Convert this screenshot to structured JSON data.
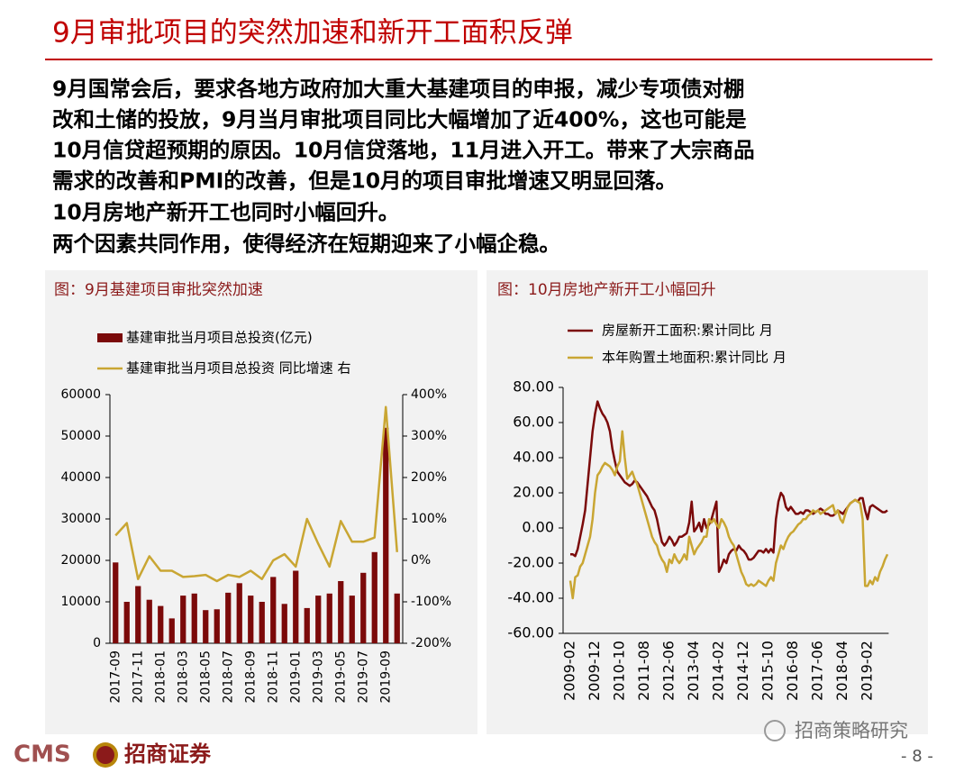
{
  "header": {
    "title": "9月审批项目的突然加速和新开工面积反弹"
  },
  "body": {
    "lines": [
      "9月国常会后，要求各地方政府加大重大基建项目的申报，减少专项债对棚",
      "改和土储的投放，9月当月审批项目同比大幅增加了近400%，这也可能是",
      "10月信贷超预期的原因。10月信贷落地，11月进入开工。带来了大宗商品",
      "需求的改善和PMI的改善，但是10月的项目审批增速又明显回落。",
      "10月房地产新开工也同时小幅回升。",
      "两个因素共同作用，使得经济在短期迎来了小幅企稳。"
    ]
  },
  "chart_data": [
    {
      "type": "bar",
      "title": "图：9月基建项目审批突然加速",
      "categories": [
        "2017-09",
        null,
        "2017-11",
        null,
        "2018-01",
        null,
        "2018-03",
        null,
        "2018-05",
        null,
        "2018-07",
        null,
        "2018-09",
        null,
        "2018-11",
        null,
        "2019-01",
        null,
        "2019-03",
        null,
        "2019-05",
        null,
        "2019-07",
        null,
        "2019-09",
        null
      ],
      "series": [
        {
          "name": "基建审批当月项目总投资(亿元)",
          "color": "#7b0a0a",
          "values": [
            19500,
            10000,
            13800,
            10500,
            9000,
            6000,
            11500,
            12000,
            8000,
            8200,
            12200,
            14500,
            11500,
            10000,
            16000,
            9500,
            17500,
            8500,
            11500,
            12000,
            15000,
            11500,
            17000,
            22000,
            52000,
            12000
          ]
        },
        {
          "name": "基建审批当月项目总投资  同比增速  右",
          "color": "#c9a633",
          "type": "line",
          "axis": "y2",
          "values": [
            60,
            90,
            -45,
            10,
            -25,
            -25,
            -40,
            -38,
            -35,
            -50,
            -35,
            -40,
            -25,
            -45,
            0,
            15,
            -15,
            100,
            40,
            -15,
            95,
            45,
            45,
            55,
            370,
            20
          ]
        }
      ],
      "ylim": [
        0,
        60000
      ],
      "yticks": [
        0,
        10000,
        20000,
        30000,
        40000,
        50000,
        60000
      ],
      "y2lim": [
        -200,
        400
      ],
      "y2ticks": [
        {
          "value": -200,
          "label": "-200%"
        },
        {
          "value": -100,
          "label": "-100%"
        },
        {
          "value": 0,
          "label": "0%"
        },
        {
          "value": 100,
          "label": "100%"
        },
        {
          "value": 200,
          "label": "200%"
        },
        {
          "value": 300,
          "label": "300%"
        },
        {
          "value": 400,
          "label": "400%"
        }
      ]
    },
    {
      "type": "line",
      "title": "图：10月房地产新开工小幅回升",
      "categories": [
        "2009-02",
        null,
        null,
        null,
        null,
        null,
        null,
        null,
        null,
        null,
        "2009-12",
        null,
        null,
        null,
        null,
        null,
        null,
        null,
        null,
        null,
        "2010-10",
        null,
        null,
        null,
        null,
        null,
        null,
        null,
        null,
        null,
        "2011-08",
        null,
        null,
        null,
        null,
        null,
        null,
        null,
        null,
        null,
        "2012-06",
        null,
        null,
        null,
        null,
        null,
        null,
        null,
        null,
        null,
        "2013-04",
        null,
        null,
        null,
        null,
        null,
        null,
        null,
        null,
        null,
        "2014-02",
        null,
        null,
        null,
        null,
        null,
        null,
        null,
        null,
        null,
        "2014-12",
        null,
        null,
        null,
        null,
        null,
        null,
        null,
        null,
        null,
        "2015-10",
        null,
        null,
        null,
        null,
        null,
        null,
        null,
        null,
        null,
        "2016-08",
        null,
        null,
        null,
        null,
        null,
        null,
        null,
        null,
        null,
        "2017-06",
        null,
        null,
        null,
        null,
        null,
        null,
        null,
        null,
        null,
        "2018-04",
        null,
        null,
        null,
        null,
        null,
        null,
        null,
        null,
        null,
        "2019-02",
        null,
        null,
        null,
        null,
        null,
        null,
        null,
        null
      ],
      "series": [
        {
          "name": "房屋新开工面积:累计同比 月",
          "color": "#7b0a0a",
          "values": [
            -15,
            -15,
            -16,
            -12,
            -5,
            2,
            10,
            25,
            40,
            55,
            65,
            72,
            68,
            65,
            63,
            60,
            55,
            45,
            38,
            32,
            30,
            28,
            26,
            25,
            24,
            25,
            27,
            26,
            24,
            22,
            20,
            18,
            15,
            12,
            10,
            5,
            -2,
            -8,
            -10,
            -8,
            -5,
            -7,
            -10,
            -8,
            -5,
            -5,
            -4,
            -3,
            3,
            15,
            -2,
            0,
            3,
            -2,
            5,
            0,
            2,
            5,
            10,
            15,
            -25,
            -22,
            -18,
            -20,
            -15,
            -13,
            -12,
            -13,
            -10,
            -12,
            -13,
            -15,
            -18,
            -18,
            -17,
            -15,
            -13,
            -13,
            -14,
            -12,
            -14,
            -12,
            -14,
            5,
            15,
            20,
            18,
            12,
            10,
            12,
            10,
            8,
            8,
            9,
            8,
            10,
            10,
            9,
            8,
            9,
            10,
            11,
            10,
            8,
            8,
            7,
            7,
            8,
            10,
            9,
            8,
            10,
            12,
            14,
            15,
            16,
            15,
            17,
            17,
            10,
            5,
            12,
            13,
            12,
            11,
            10,
            9,
            9,
            10
          ]
        },
        {
          "name": "本年购置土地面积:累计同比 月",
          "color": "#c9a633",
          "values": [
            -30,
            -40,
            -28,
            -27,
            -22,
            -20,
            -15,
            -10,
            -5,
            5,
            20,
            30,
            32,
            35,
            37,
            36,
            35,
            33,
            30,
            35,
            38,
            55,
            40,
            28,
            30,
            32,
            28,
            25,
            20,
            15,
            10,
            5,
            0,
            -5,
            -8,
            -10,
            -15,
            -18,
            -20,
            -25,
            -18,
            -20,
            -15,
            -18,
            -20,
            -18,
            -15,
            -18,
            -5,
            -10,
            -15,
            -12,
            -10,
            -8,
            -5,
            -5,
            5,
            3,
            5,
            2,
            0,
            5,
            3,
            0,
            -5,
            -8,
            -10,
            -15,
            -20,
            -25,
            -28,
            -32,
            -33,
            -32,
            -33,
            -32,
            -30,
            -31,
            -32,
            -33,
            -30,
            -28,
            -30,
            -20,
            -15,
            -10,
            -12,
            -8,
            -5,
            -3,
            -2,
            0,
            2,
            3,
            5,
            5,
            7,
            8,
            10,
            9,
            10,
            8,
            9,
            10,
            11,
            12,
            13,
            8,
            10,
            5,
            3,
            8,
            12,
            14,
            15,
            16,
            15,
            14,
            5,
            -33,
            -33,
            -30,
            -32,
            -28,
            -30,
            -25,
            -22,
            -18,
            -15
          ]
        }
      ],
      "ylim": [
        -60,
        80
      ],
      "yticks": [
        {
          "value": -60,
          "label": "-60.00"
        },
        {
          "value": -40,
          "label": "-40.00"
        },
        {
          "value": -20,
          "label": "-20.00"
        },
        {
          "value": 0,
          "label": "0.00"
        },
        {
          "value": 20,
          "label": "20.00"
        },
        {
          "value": 40,
          "label": "40.00"
        },
        {
          "value": 60,
          "label": "60.00"
        },
        {
          "value": 80,
          "label": "80.00"
        }
      ]
    }
  ],
  "footer": {
    "brand_en": "CMS",
    "brand_cn": "招商证券",
    "source": "招商策略研究",
    "page": "- 8 -"
  }
}
